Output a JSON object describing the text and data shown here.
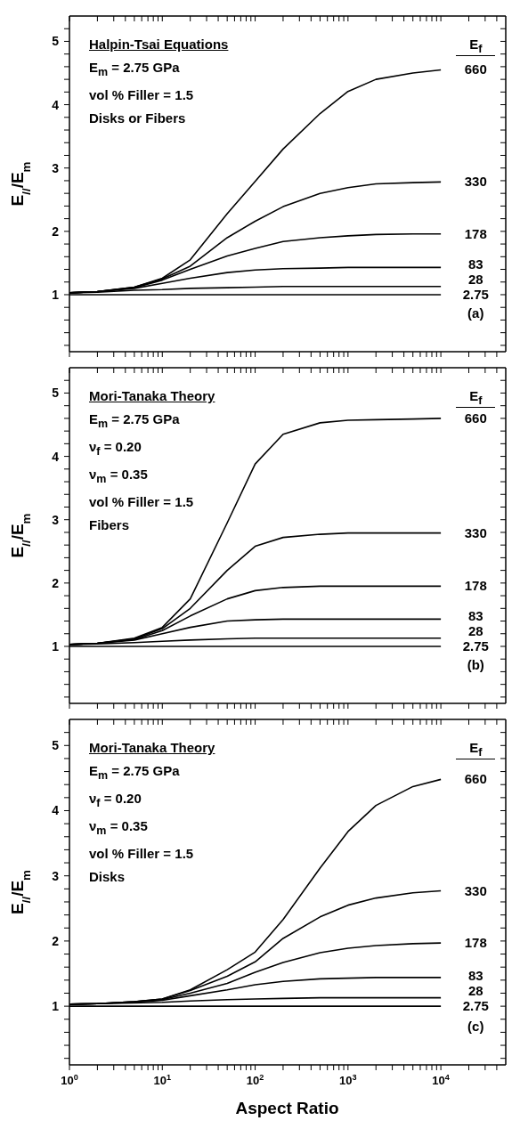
{
  "chart_data": [
    {
      "type": "line",
      "title": "Halpin-Tsai Equations",
      "ylabel": "E$_{//}$/E$_{m}$",
      "legend_title": "E$_{f}$",
      "annotations": [
        "E$_{m}$ = 2.75 GPa",
        "vol % Filler = 1.5",
        "Disks or Fibers",
        "(a)"
      ],
      "x": [
        1,
        2,
        5,
        10,
        20,
        50,
        100,
        200,
        500,
        1000,
        2000,
        5000,
        10000
      ],
      "series": [
        {
          "name": "660",
          "color": "#000000",
          "values": [
            1.03,
            1.05,
            1.12,
            1.26,
            1.55,
            2.28,
            2.79,
            3.3,
            3.86,
            4.21,
            4.4,
            4.5,
            4.55
          ]
        },
        {
          "name": "330",
          "color": "#000000",
          "values": [
            1.03,
            1.05,
            1.12,
            1.25,
            1.45,
            1.9,
            2.16,
            2.39,
            2.6,
            2.69,
            2.75,
            2.77,
            2.78
          ]
        },
        {
          "name": "178",
          "color": "#000000",
          "values": [
            1.03,
            1.05,
            1.11,
            1.23,
            1.4,
            1.61,
            1.73,
            1.84,
            1.9,
            1.93,
            1.95,
            1.96,
            1.96
          ]
        },
        {
          "name": "83",
          "color": "#000000",
          "values": [
            1.03,
            1.05,
            1.1,
            1.18,
            1.26,
            1.35,
            1.39,
            1.41,
            1.42,
            1.43,
            1.43,
            1.43,
            1.43
          ]
        },
        {
          "name": "28",
          "color": "#000000",
          "values": [
            1.03,
            1.04,
            1.07,
            1.08,
            1.1,
            1.11,
            1.12,
            1.13,
            1.13,
            1.13,
            1.13,
            1.13,
            1.13
          ]
        },
        {
          "name": "2.75",
          "color": "#000000",
          "values": [
            1,
            1,
            1,
            1,
            1,
            1,
            1,
            1,
            1,
            1,
            1,
            1,
            1
          ]
        }
      ],
      "xlim": [
        1,
        50000
      ],
      "xticks": [
        {
          "value": 1,
          "label": null
        },
        {
          "value": 2,
          "label": null
        },
        {
          "value": 3,
          "label": null
        },
        {
          "value": 4,
          "label": null
        },
        {
          "value": 5,
          "label": null
        },
        {
          "value": 6,
          "label": null
        },
        {
          "value": 7,
          "label": null
        },
        {
          "value": 8,
          "label": null
        },
        {
          "value": 9,
          "label": null
        },
        {
          "value": 10,
          "label": null
        },
        {
          "value": 20,
          "label": null
        },
        {
          "value": 30,
          "label": null
        },
        {
          "value": 40,
          "label": null
        },
        {
          "value": 50,
          "label": null
        },
        {
          "value": 60,
          "label": null
        },
        {
          "value": 70,
          "label": null
        },
        {
          "value": 80,
          "label": null
        },
        {
          "value": 90,
          "label": null
        },
        {
          "value": 100,
          "label": null
        },
        {
          "value": 200,
          "label": null
        },
        {
          "value": 300,
          "label": null
        },
        {
          "value": 400,
          "label": null
        },
        {
          "value": 500,
          "label": null
        },
        {
          "value": 600,
          "label": null
        },
        {
          "value": 700,
          "label": null
        },
        {
          "value": 800,
          "label": null
        },
        {
          "value": 900,
          "label": null
        },
        {
          "value": 1000,
          "label": null
        },
        {
          "value": 2000,
          "label": null
        },
        {
          "value": 3000,
          "label": null
        },
        {
          "value": 4000,
          "label": null
        },
        {
          "value": 5000,
          "label": null
        },
        {
          "value": 6000,
          "label": null
        },
        {
          "value": 7000,
          "label": null
        },
        {
          "value": 8000,
          "label": null
        },
        {
          "value": 9000,
          "label": null
        },
        {
          "value": 10000,
          "label": null
        },
        {
          "value": 20000,
          "label": null
        },
        {
          "value": 30000,
          "label": null
        },
        {
          "value": 40000,
          "label": null
        }
      ],
      "ylim": [
        0.1,
        5.4
      ],
      "yticks": [
        {
          "value": 0.2,
          "label": null
        },
        {
          "value": 0.4,
          "label": null
        },
        {
          "value": 0.6,
          "label": null
        },
        {
          "value": 0.8,
          "label": null
        },
        1,
        {
          "value": 1.2,
          "label": null
        },
        {
          "value": 1.4,
          "label": null
        },
        {
          "value": 1.6,
          "label": null
        },
        {
          "value": 1.8,
          "label": null
        },
        2,
        {
          "value": 2.2,
          "label": null
        },
        {
          "value": 2.4,
          "label": null
        },
        {
          "value": 2.6,
          "label": null
        },
        {
          "value": 2.8,
          "label": null
        },
        3,
        {
          "value": 3.2,
          "label": null
        },
        {
          "value": 3.4,
          "label": null
        },
        {
          "value": 3.6,
          "label": null
        },
        {
          "value": 3.8,
          "label": null
        },
        4,
        {
          "value": 4.2,
          "label": null
        },
        {
          "value": 4.4,
          "label": null
        },
        {
          "value": 4.6,
          "label": null
        },
        {
          "value": 4.8,
          "label": null
        },
        5,
        {
          "value": 5.2,
          "label": null
        }
      ],
      "log": "x",
      "tick_labels": "y",
      "grid": false,
      "legend": "right"
    },
    {
      "type": "line",
      "title": "Mori-Tanaka Theory",
      "ylabel": "E$_{//}$/E$_{m}$",
      "legend_title": "E$_{f}$",
      "annotations": [
        "E$_{m}$ = 2.75 GPa",
        "ν$_{f}$ = 0.20",
        "ν$_{m}$ = 0.35",
        "vol % Filler = 1.5",
        "Fibers",
        "(b)"
      ],
      "x": [
        1,
        2,
        5,
        10,
        20,
        50,
        100,
        200,
        500,
        1000,
        2000,
        5000,
        10000
      ],
      "series": [
        {
          "name": "660",
          "color": "#000000",
          "values": [
            1.03,
            1.05,
            1.13,
            1.3,
            1.75,
            2.95,
            3.88,
            4.35,
            4.53,
            4.57,
            4.58,
            4.59,
            4.6
          ]
        },
        {
          "name": "330",
          "color": "#000000",
          "values": [
            1.03,
            1.05,
            1.12,
            1.28,
            1.6,
            2.2,
            2.58,
            2.72,
            2.77,
            2.79,
            2.79,
            2.79,
            2.79
          ]
        },
        {
          "name": "178",
          "color": "#000000",
          "values": [
            1.03,
            1.05,
            1.11,
            1.25,
            1.48,
            1.75,
            1.88,
            1.93,
            1.95,
            1.95,
            1.95,
            1.95,
            1.95
          ]
        },
        {
          "name": "83",
          "color": "#000000",
          "values": [
            1.03,
            1.05,
            1.1,
            1.2,
            1.3,
            1.4,
            1.42,
            1.43,
            1.43,
            1.43,
            1.43,
            1.43,
            1.43
          ]
        },
        {
          "name": "28",
          "color": "#000000",
          "values": [
            1.03,
            1.04,
            1.06,
            1.08,
            1.1,
            1.12,
            1.13,
            1.13,
            1.13,
            1.13,
            1.13,
            1.13,
            1.13
          ]
        },
        {
          "name": "2.75",
          "color": "#000000",
          "values": [
            1,
            1,
            1,
            1,
            1,
            1,
            1,
            1,
            1,
            1,
            1,
            1,
            1
          ]
        }
      ],
      "xlim": [
        1,
        50000
      ],
      "xticks": [
        {
          "value": 1,
          "label": null
        },
        {
          "value": 2,
          "label": null
        },
        {
          "value": 3,
          "label": null
        },
        {
          "value": 4,
          "label": null
        },
        {
          "value": 5,
          "label": null
        },
        {
          "value": 6,
          "label": null
        },
        {
          "value": 7,
          "label": null
        },
        {
          "value": 8,
          "label": null
        },
        {
          "value": 9,
          "label": null
        },
        {
          "value": 10,
          "label": null
        },
        {
          "value": 20,
          "label": null
        },
        {
          "value": 30,
          "label": null
        },
        {
          "value": 40,
          "label": null
        },
        {
          "value": 50,
          "label": null
        },
        {
          "value": 60,
          "label": null
        },
        {
          "value": 70,
          "label": null
        },
        {
          "value": 80,
          "label": null
        },
        {
          "value": 90,
          "label": null
        },
        {
          "value": 100,
          "label": null
        },
        {
          "value": 200,
          "label": null
        },
        {
          "value": 300,
          "label": null
        },
        {
          "value": 400,
          "label": null
        },
        {
          "value": 500,
          "label": null
        },
        {
          "value": 600,
          "label": null
        },
        {
          "value": 700,
          "label": null
        },
        {
          "value": 800,
          "label": null
        },
        {
          "value": 900,
          "label": null
        },
        {
          "value": 1000,
          "label": null
        },
        {
          "value": 2000,
          "label": null
        },
        {
          "value": 3000,
          "label": null
        },
        {
          "value": 4000,
          "label": null
        },
        {
          "value": 5000,
          "label": null
        },
        {
          "value": 6000,
          "label": null
        },
        {
          "value": 7000,
          "label": null
        },
        {
          "value": 8000,
          "label": null
        },
        {
          "value": 9000,
          "label": null
        },
        {
          "value": 10000,
          "label": null
        },
        {
          "value": 20000,
          "label": null
        },
        {
          "value": 30000,
          "label": null
        },
        {
          "value": 40000,
          "label": null
        }
      ],
      "ylim": [
        0.1,
        5.4
      ],
      "yticks": [
        {
          "value": 0.2,
          "label": null
        },
        {
          "value": 0.4,
          "label": null
        },
        {
          "value": 0.6,
          "label": null
        },
        {
          "value": 0.8,
          "label": null
        },
        1,
        {
          "value": 1.2,
          "label": null
        },
        {
          "value": 1.4,
          "label": null
        },
        {
          "value": 1.6,
          "label": null
        },
        {
          "value": 1.8,
          "label": null
        },
        2,
        {
          "value": 2.2,
          "label": null
        },
        {
          "value": 2.4,
          "label": null
        },
        {
          "value": 2.6,
          "label": null
        },
        {
          "value": 2.8,
          "label": null
        },
        3,
        {
          "value": 3.2,
          "label": null
        },
        {
          "value": 3.4,
          "label": null
        },
        {
          "value": 3.6,
          "label": null
        },
        {
          "value": 3.8,
          "label": null
        },
        4,
        {
          "value": 4.2,
          "label": null
        },
        {
          "value": 4.4,
          "label": null
        },
        {
          "value": 4.6,
          "label": null
        },
        {
          "value": 4.8,
          "label": null
        },
        5,
        {
          "value": 5.2,
          "label": null
        }
      ],
      "log": "x",
      "tick_labels": "y",
      "grid": false,
      "legend": "right"
    },
    {
      "type": "line",
      "title": "Mori-Tanaka Theory",
      "xlabel": "Aspect Ratio",
      "ylabel": "E$_{//}$/E$_{m}$",
      "legend_title": "E$_{f}$",
      "annotations": [
        "E$_{m}$ = 2.75 GPa",
        "ν$_{f}$ = 0.20",
        "ν$_{m}$ = 0.35",
        "vol % Filler = 1.5",
        "Disks",
        "(c)"
      ],
      "x": [
        1,
        2,
        5,
        10,
        20,
        50,
        100,
        200,
        500,
        1000,
        2000,
        5000,
        10000
      ],
      "series": [
        {
          "name": "660",
          "color": "#000000",
          "values": [
            1.03,
            1.04,
            1.07,
            1.11,
            1.25,
            1.56,
            1.83,
            2.33,
            3.12,
            3.68,
            4.08,
            4.37,
            4.48
          ]
        },
        {
          "name": "330",
          "color": "#000000",
          "values": [
            1.03,
            1.04,
            1.07,
            1.11,
            1.24,
            1.46,
            1.68,
            2.04,
            2.37,
            2.55,
            2.66,
            2.74,
            2.77
          ]
        },
        {
          "name": "178",
          "color": "#000000",
          "values": [
            1.03,
            1.04,
            1.07,
            1.1,
            1.2,
            1.35,
            1.52,
            1.67,
            1.82,
            1.89,
            1.93,
            1.96,
            1.97
          ]
        },
        {
          "name": "83",
          "color": "#000000",
          "values": [
            1.03,
            1.04,
            1.06,
            1.09,
            1.16,
            1.25,
            1.33,
            1.38,
            1.42,
            1.43,
            1.44,
            1.44,
            1.44
          ]
        },
        {
          "name": "28",
          "color": "#000000",
          "values": [
            1.03,
            1.04,
            1.05,
            1.06,
            1.08,
            1.1,
            1.11,
            1.12,
            1.13,
            1.13,
            1.13,
            1.13,
            1.13
          ]
        },
        {
          "name": "2.75",
          "color": "#000000",
          "values": [
            1,
            1,
            1,
            1,
            1,
            1,
            1,
            1,
            1,
            1,
            1,
            1,
            1
          ]
        }
      ],
      "xlim": [
        1,
        50000
      ],
      "xticks": [
        {
          "value": 1,
          "label": "10$^{0}$"
        },
        {
          "value": 2,
          "label": null
        },
        {
          "value": 3,
          "label": null
        },
        {
          "value": 4,
          "label": null
        },
        {
          "value": 5,
          "label": null
        },
        {
          "value": 6,
          "label": null
        },
        {
          "value": 7,
          "label": null
        },
        {
          "value": 8,
          "label": null
        },
        {
          "value": 9,
          "label": null
        },
        {
          "value": 10,
          "label": "10$^{1}$"
        },
        {
          "value": 20,
          "label": null
        },
        {
          "value": 30,
          "label": null
        },
        {
          "value": 40,
          "label": null
        },
        {
          "value": 50,
          "label": null
        },
        {
          "value": 60,
          "label": null
        },
        {
          "value": 70,
          "label": null
        },
        {
          "value": 80,
          "label": null
        },
        {
          "value": 90,
          "label": null
        },
        {
          "value": 100,
          "label": "10$^{2}$"
        },
        {
          "value": 200,
          "label": null
        },
        {
          "value": 300,
          "label": null
        },
        {
          "value": 400,
          "label": null
        },
        {
          "value": 500,
          "label": null
        },
        {
          "value": 600,
          "label": null
        },
        {
          "value": 700,
          "label": null
        },
        {
          "value": 800,
          "label": null
        },
        {
          "value": 900,
          "label": null
        },
        {
          "value": 1000,
          "label": "10$^{3}$"
        },
        {
          "value": 2000,
          "label": null
        },
        {
          "value": 3000,
          "label": null
        },
        {
          "value": 4000,
          "label": null
        },
        {
          "value": 5000,
          "label": null
        },
        {
          "value": 6000,
          "label": null
        },
        {
          "value": 7000,
          "label": null
        },
        {
          "value": 8000,
          "label": null
        },
        {
          "value": 9000,
          "label": null
        },
        {
          "value": 10000,
          "label": "10$^{4}$"
        },
        {
          "value": 20000,
          "label": null
        },
        {
          "value": 30000,
          "label": null
        },
        {
          "value": 40000,
          "label": null
        }
      ],
      "ylim": [
        0.1,
        5.4
      ],
      "yticks": [
        {
          "value": 0.2,
          "label": null
        },
        {
          "value": 0.4,
          "label": null
        },
        {
          "value": 0.6,
          "label": null
        },
        {
          "value": 0.8,
          "label": null
        },
        1,
        {
          "value": 1.2,
          "label": null
        },
        {
          "value": 1.4,
          "label": null
        },
        {
          "value": 1.6,
          "label": null
        },
        {
          "value": 1.8,
          "label": null
        },
        2,
        {
          "value": 2.2,
          "label": null
        },
        {
          "value": 2.4,
          "label": null
        },
        {
          "value": 2.6,
          "label": null
        },
        {
          "value": 2.8,
          "label": null
        },
        3,
        {
          "value": 3.2,
          "label": null
        },
        {
          "value": 3.4,
          "label": null
        },
        {
          "value": 3.6,
          "label": null
        },
        {
          "value": 3.8,
          "label": null
        },
        4,
        {
          "value": 4.2,
          "label": null
        },
        {
          "value": 4.4,
          "label": null
        },
        {
          "value": 4.6,
          "label": null
        },
        {
          "value": 4.8,
          "label": null
        },
        5,
        {
          "value": 5.2,
          "label": null
        }
      ],
      "log": "x",
      "grid": false,
      "legend": "right"
    }
  ]
}
